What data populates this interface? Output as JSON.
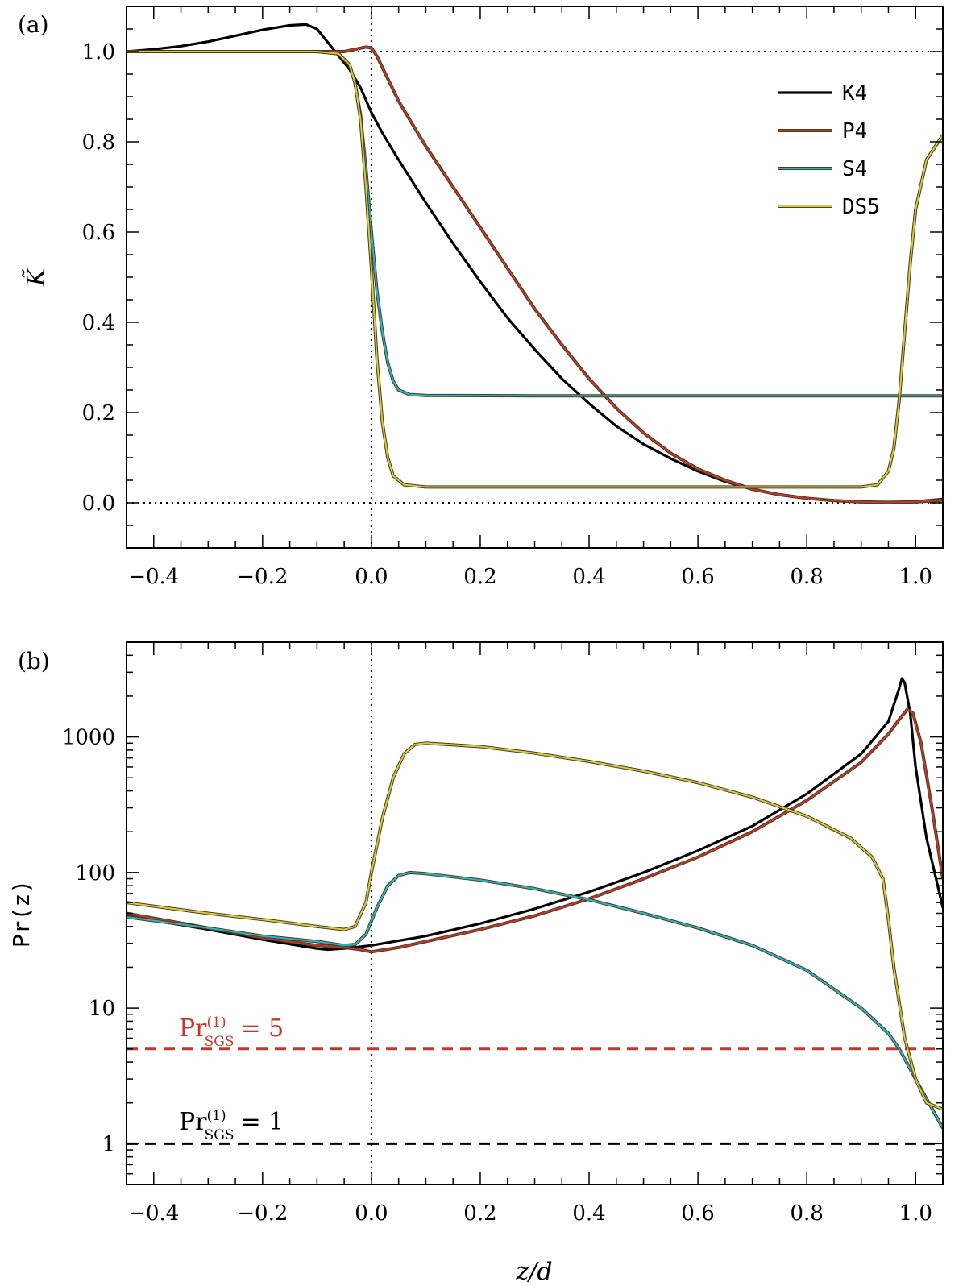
{
  "chart_data": [
    {
      "type": "line",
      "panel_label": "(a)",
      "xlabel": "",
      "ylabel": "K̃",
      "xlim": [
        -0.45,
        1.05
      ],
      "ylim": [
        -0.1,
        1.1
      ],
      "x_ticks": [
        -0.4,
        -0.2,
        0.0,
        0.2,
        0.4,
        0.6,
        0.8,
        1.0
      ],
      "x_tick_labels": [
        "−0.4",
        "−0.2",
        "0.0",
        "0.2",
        "0.4",
        "0.6",
        "0.8",
        "1.0"
      ],
      "y_ticks": [
        0.0,
        0.2,
        0.4,
        0.6,
        0.8,
        1.0
      ],
      "y_tick_labels": [
        "0.0",
        "0.2",
        "0.4",
        "0.6",
        "0.8",
        "1.0"
      ],
      "reference_lines": [
        {
          "orientation": "horizontal",
          "value": 1.0,
          "style": "dotted"
        },
        {
          "orientation": "horizontal",
          "value": 0.0,
          "style": "dotted"
        },
        {
          "orientation": "vertical",
          "value": 0.0,
          "style": "dotted"
        }
      ],
      "legend": {
        "position": "top-right",
        "entries": [
          "K4",
          "P4",
          "S4",
          "DS5"
        ]
      },
      "series": [
        {
          "name": "K4",
          "color": "#000000",
          "points": [
            [
              -0.45,
              1.0
            ],
            [
              -0.4,
              1.005
            ],
            [
              -0.35,
              1.012
            ],
            [
              -0.3,
              1.022
            ],
            [
              -0.25,
              1.035
            ],
            [
              -0.2,
              1.048
            ],
            [
              -0.15,
              1.058
            ],
            [
              -0.12,
              1.06
            ],
            [
              -0.1,
              1.05
            ],
            [
              -0.08,
              1.02
            ],
            [
              -0.06,
              0.99
            ],
            [
              -0.04,
              0.96
            ],
            [
              -0.02,
              0.92
            ],
            [
              0.0,
              0.865
            ],
            [
              0.02,
              0.82
            ],
            [
              0.05,
              0.76
            ],
            [
              0.1,
              0.665
            ],
            [
              0.15,
              0.575
            ],
            [
              0.2,
              0.49
            ],
            [
              0.25,
              0.41
            ],
            [
              0.3,
              0.34
            ],
            [
              0.35,
              0.275
            ],
            [
              0.4,
              0.22
            ],
            [
              0.45,
              0.17
            ],
            [
              0.5,
              0.13
            ],
            [
              0.55,
              0.098
            ],
            [
              0.6,
              0.07
            ],
            [
              0.65,
              0.047
            ],
            [
              0.7,
              0.03
            ],
            [
              0.75,
              0.018
            ],
            [
              0.8,
              0.01
            ],
            [
              0.85,
              0.005
            ],
            [
              0.9,
              0.002
            ],
            [
              0.95,
              0.001
            ],
            [
              1.0,
              0.003
            ],
            [
              1.05,
              0.008
            ]
          ]
        },
        {
          "name": "P4",
          "color": "#c0392b",
          "points": [
            [
              -0.45,
              1.0
            ],
            [
              -0.2,
              1.0
            ],
            [
              -0.1,
              1.0
            ],
            [
              -0.05,
              1.0
            ],
            [
              -0.03,
              1.005
            ],
            [
              -0.01,
              1.01
            ],
            [
              0.0,
              1.008
            ],
            [
              0.01,
              0.99
            ],
            [
              0.03,
              0.94
            ],
            [
              0.05,
              0.89
            ],
            [
              0.1,
              0.79
            ],
            [
              0.15,
              0.7
            ],
            [
              0.2,
              0.61
            ],
            [
              0.25,
              0.52
            ],
            [
              0.3,
              0.43
            ],
            [
              0.35,
              0.35
            ],
            [
              0.4,
              0.275
            ],
            [
              0.45,
              0.21
            ],
            [
              0.5,
              0.155
            ],
            [
              0.55,
              0.11
            ],
            [
              0.6,
              0.075
            ],
            [
              0.65,
              0.05
            ],
            [
              0.7,
              0.03
            ],
            [
              0.75,
              0.018
            ],
            [
              0.8,
              0.01
            ],
            [
              0.85,
              0.005
            ],
            [
              0.9,
              0.002
            ],
            [
              0.95,
              0.001
            ],
            [
              1.0,
              0.002
            ],
            [
              1.05,
              0.006
            ]
          ]
        },
        {
          "name": "S4",
          "color": "#2bb6c6",
          "points": [
            [
              -0.45,
              1.0
            ],
            [
              -0.2,
              1.0
            ],
            [
              -0.1,
              1.0
            ],
            [
              -0.06,
              0.995
            ],
            [
              -0.04,
              0.97
            ],
            [
              -0.03,
              0.93
            ],
            [
              -0.02,
              0.86
            ],
            [
              -0.01,
              0.74
            ],
            [
              0.0,
              0.6
            ],
            [
              0.01,
              0.47
            ],
            [
              0.02,
              0.38
            ],
            [
              0.03,
              0.31
            ],
            [
              0.04,
              0.27
            ],
            [
              0.05,
              0.25
            ],
            [
              0.07,
              0.24
            ],
            [
              0.1,
              0.238
            ],
            [
              0.3,
              0.237
            ],
            [
              0.6,
              0.237
            ],
            [
              0.9,
              0.237
            ],
            [
              1.05,
              0.237
            ]
          ]
        },
        {
          "name": "DS5",
          "color": "#d8cc3c",
          "points": [
            [
              -0.45,
              1.0
            ],
            [
              -0.2,
              1.0
            ],
            [
              -0.1,
              1.0
            ],
            [
              -0.06,
              0.995
            ],
            [
              -0.04,
              0.97
            ],
            [
              -0.03,
              0.93
            ],
            [
              -0.02,
              0.85
            ],
            [
              -0.01,
              0.7
            ],
            [
              0.0,
              0.52
            ],
            [
              0.01,
              0.32
            ],
            [
              0.02,
              0.18
            ],
            [
              0.03,
              0.1
            ],
            [
              0.04,
              0.06
            ],
            [
              0.06,
              0.04
            ],
            [
              0.1,
              0.035
            ],
            [
              0.3,
              0.035
            ],
            [
              0.6,
              0.035
            ],
            [
              0.9,
              0.035
            ],
            [
              0.93,
              0.04
            ],
            [
              0.95,
              0.07
            ],
            [
              0.96,
              0.12
            ],
            [
              0.97,
              0.23
            ],
            [
              0.98,
              0.38
            ],
            [
              0.99,
              0.53
            ],
            [
              1.0,
              0.65
            ],
            [
              1.02,
              0.76
            ],
            [
              1.05,
              0.815
            ]
          ]
        }
      ]
    },
    {
      "type": "line",
      "panel_label": "(b)",
      "xlabel": "z/d",
      "ylabel": "Pr(z)",
      "yscale": "log",
      "xlim": [
        -0.45,
        1.05
      ],
      "ylim": [
        0.5,
        5000
      ],
      "x_ticks": [
        -0.4,
        -0.2,
        0.0,
        0.2,
        0.4,
        0.6,
        0.8,
        1.0
      ],
      "x_tick_labels": [
        "−0.4",
        "−0.2",
        "0.0",
        "0.2",
        "0.4",
        "0.6",
        "0.8",
        "1.0"
      ],
      "y_ticks": [
        1,
        10,
        100,
        1000
      ],
      "y_tick_labels": [
        "1",
        "10",
        "100",
        "1000"
      ],
      "reference_lines": [
        {
          "orientation": "vertical",
          "value": 0.0,
          "style": "dotted"
        },
        {
          "orientation": "horizontal",
          "value": 5,
          "style": "dashed",
          "color": "#c0392b"
        },
        {
          "orientation": "horizontal",
          "value": 1,
          "style": "dashed",
          "color": "#000000"
        }
      ],
      "annotations": [
        {
          "main": "Pr",
          "sup": "(1)",
          "sub": "SGS",
          "value": "= 5",
          "color": "#c0392b"
        },
        {
          "main": "Pr",
          "sup": "(1)",
          "sub": "SGS",
          "value": "= 1",
          "color": "#000000"
        }
      ],
      "series": [
        {
          "name": "K4",
          "color": "#000000",
          "points": [
            [
              -0.45,
              48
            ],
            [
              -0.3,
              38
            ],
            [
              -0.2,
              32
            ],
            [
              -0.1,
              27.5
            ],
            [
              -0.08,
              27
            ],
            [
              -0.05,
              27.5
            ],
            [
              0.0,
              29
            ],
            [
              0.1,
              34
            ],
            [
              0.2,
              42
            ],
            [
              0.3,
              54
            ],
            [
              0.4,
              72
            ],
            [
              0.5,
              100
            ],
            [
              0.6,
              145
            ],
            [
              0.7,
              220
            ],
            [
              0.8,
              380
            ],
            [
              0.9,
              750
            ],
            [
              0.95,
              1300
            ],
            [
              0.97,
              2300
            ],
            [
              0.975,
              2700
            ],
            [
              0.98,
              2500
            ],
            [
              0.99,
              1500
            ],
            [
              1.0,
              600
            ],
            [
              1.02,
              180
            ],
            [
              1.05,
              55
            ]
          ]
        },
        {
          "name": "P4",
          "color": "#c0392b",
          "points": [
            [
              -0.45,
              50
            ],
            [
              -0.3,
              39
            ],
            [
              -0.2,
              33
            ],
            [
              -0.1,
              29
            ],
            [
              -0.05,
              28
            ],
            [
              -0.02,
              27
            ],
            [
              0.0,
              26
            ],
            [
              0.05,
              28
            ],
            [
              0.1,
              31
            ],
            [
              0.2,
              38
            ],
            [
              0.3,
              48
            ],
            [
              0.4,
              64
            ],
            [
              0.5,
              90
            ],
            [
              0.6,
              130
            ],
            [
              0.7,
              200
            ],
            [
              0.8,
              340
            ],
            [
              0.9,
              650
            ],
            [
              0.95,
              1050
            ],
            [
              0.97,
              1350
            ],
            [
              0.985,
              1600
            ],
            [
              0.995,
              1500
            ],
            [
              1.01,
              900
            ],
            [
              1.03,
              300
            ],
            [
              1.05,
              90
            ]
          ]
        },
        {
          "name": "S4",
          "color": "#2bb6c6",
          "points": [
            [
              -0.45,
              47
            ],
            [
              -0.3,
              39
            ],
            [
              -0.2,
              34
            ],
            [
              -0.1,
              31
            ],
            [
              -0.05,
              29
            ],
            [
              -0.03,
              29.5
            ],
            [
              -0.01,
              35
            ],
            [
              0.01,
              55
            ],
            [
              0.03,
              80
            ],
            [
              0.05,
              95
            ],
            [
              0.07,
              100
            ],
            [
              0.1,
              98
            ],
            [
              0.2,
              88
            ],
            [
              0.3,
              76
            ],
            [
              0.4,
              63
            ],
            [
              0.5,
              50
            ],
            [
              0.6,
              39
            ],
            [
              0.7,
              29
            ],
            [
              0.8,
              19
            ],
            [
              0.9,
              10
            ],
            [
              0.95,
              6.5
            ],
            [
              0.97,
              5
            ],
            [
              1.0,
              3
            ],
            [
              1.05,
              1.3
            ]
          ]
        },
        {
          "name": "DS5",
          "color": "#d8cc3c",
          "points": [
            [
              -0.45,
              60
            ],
            [
              -0.3,
              50
            ],
            [
              -0.2,
              45
            ],
            [
              -0.1,
              40
            ],
            [
              -0.05,
              38
            ],
            [
              -0.03,
              40
            ],
            [
              -0.01,
              60
            ],
            [
              0.0,
              100
            ],
            [
              0.02,
              250
            ],
            [
              0.04,
              500
            ],
            [
              0.06,
              750
            ],
            [
              0.08,
              880
            ],
            [
              0.1,
              900
            ],
            [
              0.2,
              850
            ],
            [
              0.3,
              760
            ],
            [
              0.4,
              660
            ],
            [
              0.5,
              560
            ],
            [
              0.6,
              460
            ],
            [
              0.7,
              360
            ],
            [
              0.8,
              260
            ],
            [
              0.88,
              180
            ],
            [
              0.92,
              130
            ],
            [
              0.94,
              90
            ],
            [
              0.95,
              45
            ],
            [
              0.96,
              20
            ],
            [
              0.98,
              6
            ],
            [
              1.0,
              3
            ],
            [
              1.02,
              2
            ],
            [
              1.05,
              1.8
            ]
          ]
        }
      ]
    }
  ]
}
